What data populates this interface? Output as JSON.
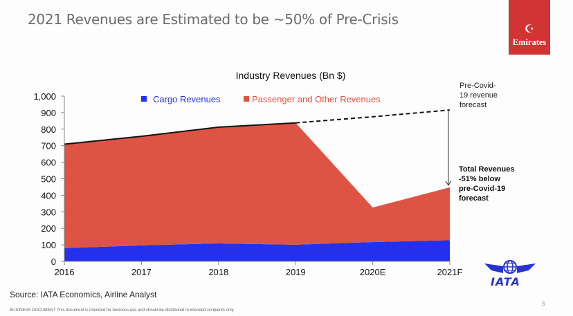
{
  "slide": {
    "title": "2021 Revenues are Estimated to be ~50% of Pre-Crisis",
    "logo_text": "Emirates",
    "logo_color": "#d23434",
    "source": "Source: IATA Economics, Airline Analyst",
    "disclaimer": "BUSINESS DOCUMENT  This document is intended for business use and should be distributed to intended recipients only.",
    "page_number": "5",
    "partner_logo": "IATA"
  },
  "chart_data": {
    "type": "area",
    "stacked": true,
    "title": "Industry Revenues (Bn $)",
    "xlabel": "",
    "ylabel": "",
    "categories": [
      "2016",
      "2017",
      "2018",
      "2019",
      "2020E",
      "2021F"
    ],
    "ylim": [
      0,
      1000
    ],
    "yticks": [
      0,
      100,
      200,
      300,
      400,
      500,
      600,
      700,
      800,
      900,
      1000
    ],
    "ytick_labels": [
      "0",
      "100",
      "200",
      "300",
      "400",
      "500",
      "600",
      "700",
      "800",
      "900",
      "1,000"
    ],
    "grid": false,
    "legend_position": "top",
    "series": [
      {
        "name": "Cargo Revenues",
        "color": "#2530ec",
        "values": [
          80,
          97,
          109,
          101,
          117,
          128
        ]
      },
      {
        "name": "Passenger and Other Revenues",
        "color": "#de5444",
        "values": [
          629,
          660,
          703,
          737,
          209,
          320
        ]
      }
    ],
    "totals": [
      709,
      757,
      812,
      838,
      326,
      448
    ],
    "pre_covid_forecast": {
      "name": "Pre-Covid-19 revenue forecast",
      "categories": [
        "2019",
        "2020E",
        "2021F"
      ],
      "values": [
        838,
        875,
        916
      ],
      "style": "dashed"
    },
    "annotations": [
      {
        "text_lines": [
          "Pre-Covid-",
          "19 revenue",
          "forecast"
        ],
        "anchor": "2021F"
      },
      {
        "text_lines": [
          "Total Revenues",
          "-51% below",
          "pre-Covid-19",
          "forecast"
        ],
        "anchor": "2021F",
        "bold": true
      }
    ]
  }
}
